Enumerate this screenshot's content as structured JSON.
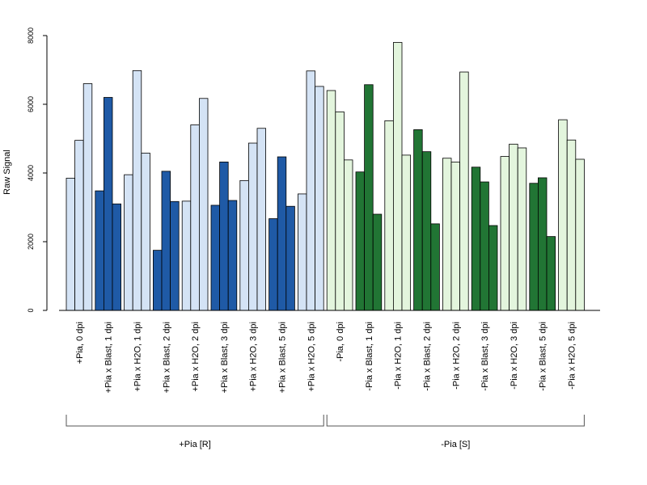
{
  "chart_data": {
    "type": "bar",
    "title": "",
    "xlabel": "",
    "ylabel": "Raw Signal",
    "ylim": [
      0,
      8000
    ],
    "yticks": [
      0,
      2000,
      4000,
      6000,
      8000
    ],
    "grid": false,
    "categories": [
      "+Pia, 0 dpi",
      "+Pia x Blast, 1 dpi",
      "+Pia x H2O, 1 dpi",
      "+Pia x Blast, 2 dpi",
      "+Pia x H2O, 2 dpi",
      "+Pia x Blast, 3 dpi",
      "+Pia x H2O, 3 dpi",
      "+Pia x Blast, 5 dpi",
      "+Pia x H2O, 5 dpi",
      "-Pia, 0 dpi",
      "-Pia x Blast, 1 dpi",
      "-Pia x H2O, 1 dpi",
      "-Pia x Blast, 2 dpi",
      "-Pia x H2O, 2 dpi",
      "-Pia x Blast, 3 dpi",
      "-Pia x H2O, 3 dpi",
      "-Pia x Blast, 5 dpi",
      "-Pia x H2O, 5 dpi"
    ],
    "replicates": [
      [
        3850,
        4950,
        6600
      ],
      [
        3480,
        6200,
        3100
      ],
      [
        3950,
        6980,
        4580
      ],
      [
        1750,
        4050,
        3170
      ],
      [
        3180,
        5400,
        6170
      ],
      [
        3060,
        4320,
        3200
      ],
      [
        3780,
        4870,
        5300
      ],
      [
        2670,
        4470,
        3030
      ],
      [
        3390,
        6970,
        6520
      ],
      [
        6400,
        5780,
        4380
      ],
      [
        4030,
        6570,
        2800
      ],
      [
        5520,
        7800,
        4520
      ],
      [
        5260,
        4620,
        2520
      ],
      [
        4430,
        4320,
        6940
      ],
      [
        4170,
        3740,
        2470
      ],
      [
        4480,
        4840,
        4730
      ],
      [
        3700,
        3860,
        2150
      ],
      [
        5550,
        4960,
        4400
      ]
    ],
    "bar_colors": [
      "#d4e3f5",
      "#1f5aa6",
      "#d4e3f5",
      "#1f5aa6",
      "#d4e3f5",
      "#1f5aa6",
      "#d4e3f5",
      "#1f5aa6",
      "#d4e3f5",
      "#e3f5dd",
      "#217534",
      "#e3f5dd",
      "#217534",
      "#e3f5dd",
      "#217534",
      "#e3f5dd",
      "#217534",
      "#e3f5dd"
    ],
    "groups": [
      {
        "label": "+Pia [R]",
        "first": 0,
        "last": 8
      },
      {
        "label": "-Pia [S]",
        "first": 9,
        "last": 17
      }
    ]
  }
}
